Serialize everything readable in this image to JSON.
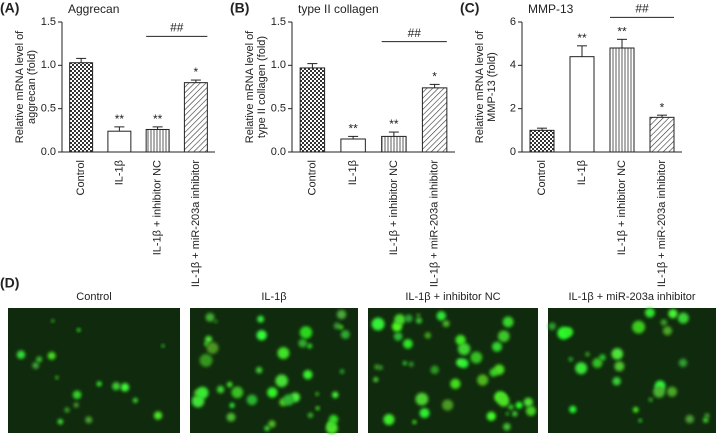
{
  "chart_data": [
    {
      "type": "bar",
      "panel": "(A)",
      "title": "Aggrecan",
      "ylabel": [
        "Relative mRNA level of",
        "aggrecan (fold)"
      ],
      "categories": [
        "Control",
        "IL-1β",
        "IL-1β + inhibitor NC",
        "IL-1β + miR-203a inhibitor"
      ],
      "values": [
        1.03,
        0.24,
        0.26,
        0.8
      ],
      "errors": [
        0.05,
        0.05,
        0.03,
        0.03
      ],
      "significance": [
        null,
        "**",
        "**",
        "*"
      ],
      "bracket": {
        "label": "##",
        "between": [
          "IL-1β + inhibitor NC",
          "IL-1β + miR-203a inhibitor"
        ]
      },
      "fill_patterns": [
        "checker",
        "none",
        "vertical",
        "diagonal"
      ],
      "color": "#222222",
      "ylim": [
        0,
        1.5
      ],
      "yticks": [
        {
          "value": 0,
          "label": "0.0"
        },
        0.5,
        {
          "value": 1,
          "label": "1.0"
        },
        1.5
      ]
    },
    {
      "type": "bar",
      "panel": "(B)",
      "title": "type II collagen",
      "ylabel": [
        "Relative mRNA level of",
        "type II collagen (fold)"
      ],
      "categories": [
        "Control",
        "IL-1β",
        "IL-1β + inhibitor NC",
        "IL-1β + miR-203a inhibitor"
      ],
      "values": [
        0.97,
        0.15,
        0.18,
        0.74
      ],
      "errors": [
        0.05,
        0.03,
        0.05,
        0.04
      ],
      "significance": [
        null,
        "**",
        "**",
        "*"
      ],
      "bracket": {
        "label": "##",
        "between": [
          "IL-1β + inhibitor NC",
          "IL-1β + miR-203a inhibitor"
        ]
      },
      "fill_patterns": [
        "checker",
        "none",
        "vertical",
        "diagonal"
      ],
      "color": "#222222",
      "ylim": [
        0,
        1.5
      ],
      "yticks": [
        {
          "value": 0,
          "label": "0.0"
        },
        0.5,
        {
          "value": 1,
          "label": "1.0"
        },
        1.5
      ]
    },
    {
      "type": "bar",
      "panel": "(C)",
      "title": "MMP-13",
      "ylabel": [
        "Relative mRNA level of",
        "MMP-13 (fold)"
      ],
      "categories": [
        "Control",
        "IL-1β",
        "IL-1β + inhibitor NC",
        "IL-1β + miR-203a inhibitor"
      ],
      "values": [
        1.0,
        4.4,
        4.8,
        1.6
      ],
      "errors": [
        0.1,
        0.5,
        0.4,
        0.1
      ],
      "significance": [
        null,
        "**",
        "**",
        "*"
      ],
      "bracket": {
        "label": "##",
        "between": [
          "IL-1β + inhibitor NC",
          "IL-1β + miR-203a inhibitor"
        ]
      },
      "fill_patterns": [
        "checker",
        "none",
        "vertical",
        "diagonal"
      ],
      "color": "#222222",
      "ylim": [
        0,
        6
      ],
      "yticks": [
        0,
        2,
        4,
        6
      ]
    }
  ],
  "panel_d": {
    "label": "(D)",
    "titles": [
      "Control",
      "IL-1β",
      "IL-1β + inhibitor NC",
      "IL-1β + miR-203a inhibitor"
    ]
  }
}
